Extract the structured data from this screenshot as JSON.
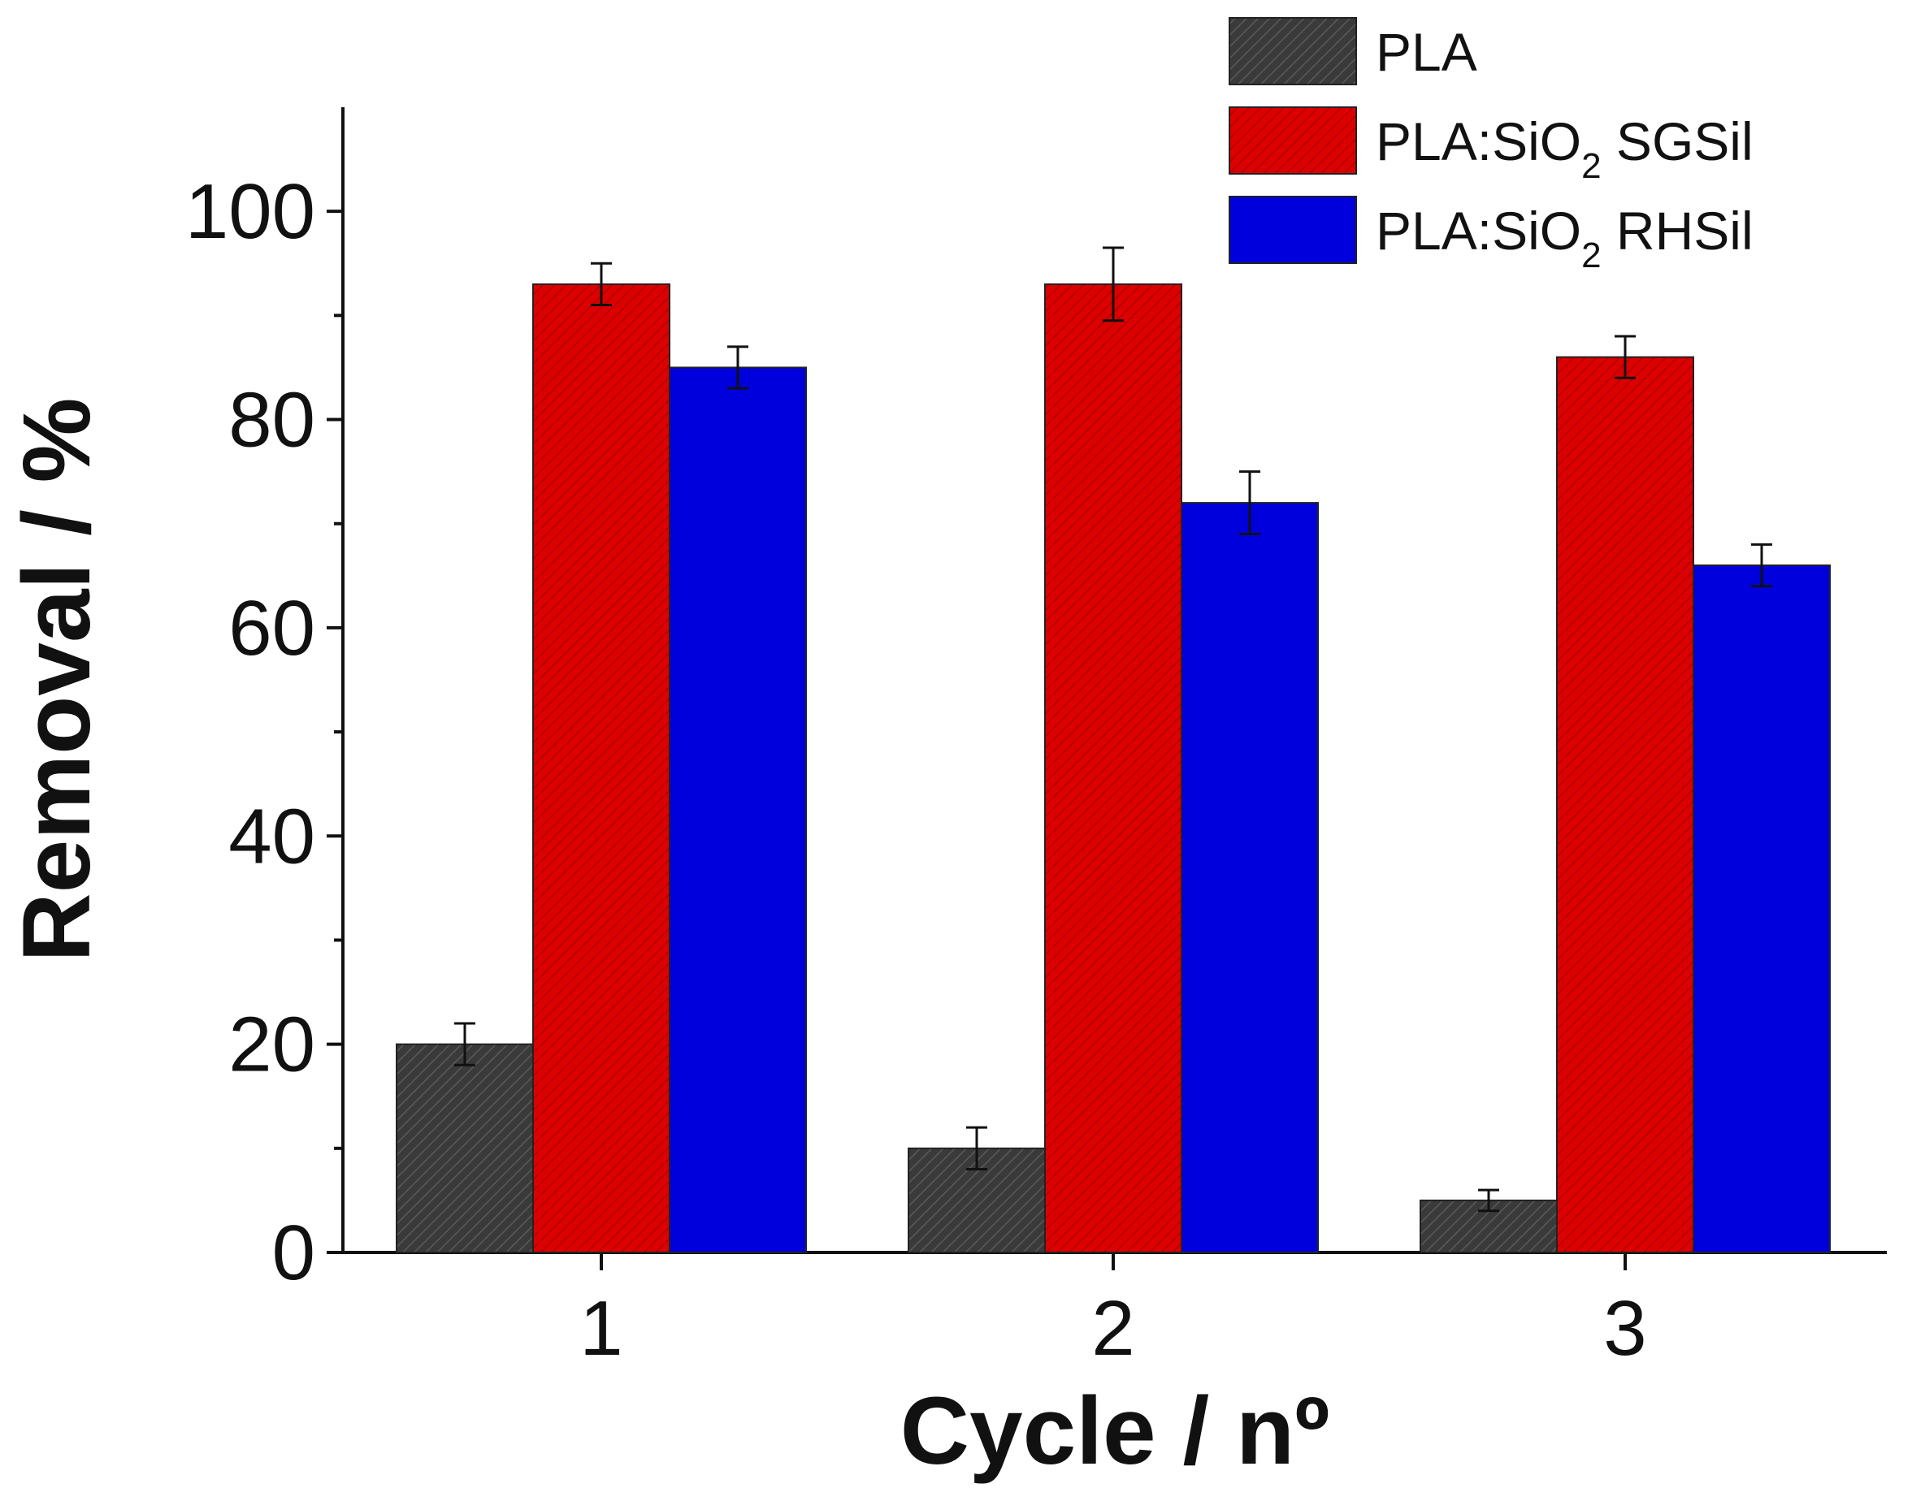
{
  "chart_data": {
    "type": "bar",
    "xlabel": "Cycle / nº",
    "ylabel": "Removal / %",
    "categories": [
      "1",
      "2",
      "3"
    ],
    "ylim": [
      0,
      110
    ],
    "yticks": [
      0,
      20,
      40,
      60,
      80,
      100
    ],
    "legend_position": "top-right",
    "series": [
      {
        "name": "PLA",
        "name_main": "PLA",
        "name_sub": "",
        "name_tail": "",
        "color": "#3a3a3a",
        "hatched": true,
        "values": [
          20,
          10,
          5
        ],
        "errors": [
          2,
          2,
          1
        ]
      },
      {
        "name": "PLA:SiO2 SGSil",
        "name_main": "PLA:SiO",
        "name_sub": "2",
        "name_tail": " SGSil",
        "color": "#dd0000",
        "hatched": true,
        "values": [
          93,
          93,
          86
        ],
        "errors": [
          2,
          3.5,
          2
        ]
      },
      {
        "name": "PLA:SiO2 RHSil",
        "name_main": "PLA:SiO",
        "name_sub": "2",
        "name_tail": " RHSil",
        "color": "#0000dd",
        "hatched": false,
        "values": [
          85,
          72,
          66
        ],
        "errors": [
          2,
          3,
          2
        ]
      }
    ]
  }
}
